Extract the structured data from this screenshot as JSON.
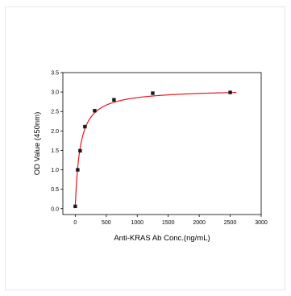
{
  "chart_data": {
    "type": "scatter",
    "xlabel": "Anti-KRAS Ab Conc.(ng/mL)",
    "ylabel": "OD Value (450nm)",
    "xlim": [
      -200,
      3000
    ],
    "ylim": [
      -0.15,
      3.5
    ],
    "x_ticks": [
      0,
      500,
      1000,
      1500,
      2000,
      2500,
      3000
    ],
    "x_tick_labels": [
      "0",
      "500",
      "1000",
      "1500",
      "2000",
      "2500",
      "3000"
    ],
    "y_ticks": [
      0.0,
      0.5,
      1.0,
      1.5,
      2.0,
      2.5,
      3.0,
      3.5
    ],
    "y_tick_labels": [
      "0.0",
      "0.5",
      "1.0",
      "1.5",
      "2.0",
      "2.5",
      "3.0",
      "3.5"
    ],
    "grid": false,
    "series": [
      {
        "x": [
          0,
          39,
          78,
          156,
          313,
          625,
          1250,
          2500
        ],
        "y": [
          0.06,
          1.0,
          1.49,
          2.11,
          2.52,
          2.8,
          2.97,
          2.99
        ],
        "marker_color": "#1a1a1a",
        "marker": "square"
      }
    ],
    "fit_curve": {
      "type": "hyperbolic",
      "color": "#e8161e"
    }
  }
}
